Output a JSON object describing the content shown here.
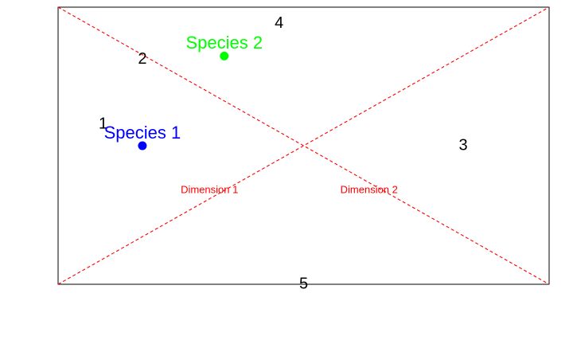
{
  "chart_data": {
    "type": "scatter",
    "title": "",
    "xlabel": "",
    "ylabel": "",
    "xlim": [
      0,
      6
    ],
    "ylim": [
      0,
      3.4
    ],
    "grid": false,
    "points": [
      {
        "label": "Species 1",
        "x": 1.03,
        "y": 1.7,
        "color": "#0000ff"
      },
      {
        "label": "Species 2",
        "x": 2.03,
        "y": 2.8,
        "color": "#00ff00"
      }
    ],
    "site_labels": [
      {
        "label": "1",
        "x": 0.55,
        "y": 1.96
      },
      {
        "label": "2",
        "x": 1.03,
        "y": 2.76
      },
      {
        "label": "3",
        "x": 4.95,
        "y": 1.7
      },
      {
        "label": "4",
        "x": 2.7,
        "y": 3.2
      },
      {
        "label": "5",
        "x": 3.0,
        "y": 0.0
      }
    ],
    "axis_lines": [
      {
        "label": "Dimension 1",
        "x0": 0,
        "y0": 0,
        "x1": 6,
        "y1": 3.4,
        "label_x": 1.85,
        "label_y": 1.15
      },
      {
        "label": "Dimension 2",
        "x0": 0,
        "y0": 3.4,
        "x1": 6,
        "y1": 0,
        "label_x": 3.8,
        "label_y": 1.15
      }
    ],
    "line_color": "#ff0000"
  }
}
